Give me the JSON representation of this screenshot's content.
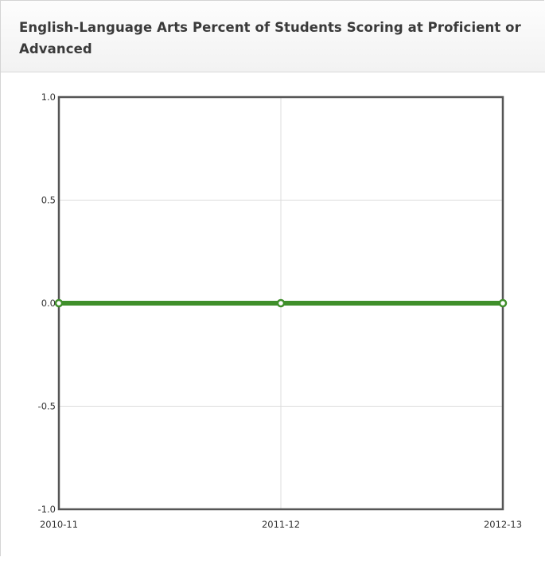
{
  "panel": {
    "title": "English-Language Arts Percent of Students Scoring at Proficient or Advanced"
  },
  "chart_data": {
    "type": "line",
    "title": "English-Language Arts Percent of Students Scoring at Proficient or Advanced",
    "xlabel": "",
    "ylabel": "",
    "categories": [
      "2010-11",
      "2011-12",
      "2012-13"
    ],
    "yticks": [
      "1.0",
      "0.5",
      "0.0",
      "-0.5",
      "-1.0"
    ],
    "ytick_values": [
      1.0,
      0.5,
      0.0,
      -0.5,
      -1.0
    ],
    "ylim": [
      -1.0,
      1.0
    ],
    "grid": true,
    "series": [
      {
        "values": [
          0,
          0,
          0
        ],
        "color": "#3f8f2a",
        "marker_fill": "#ffffff"
      }
    ]
  }
}
